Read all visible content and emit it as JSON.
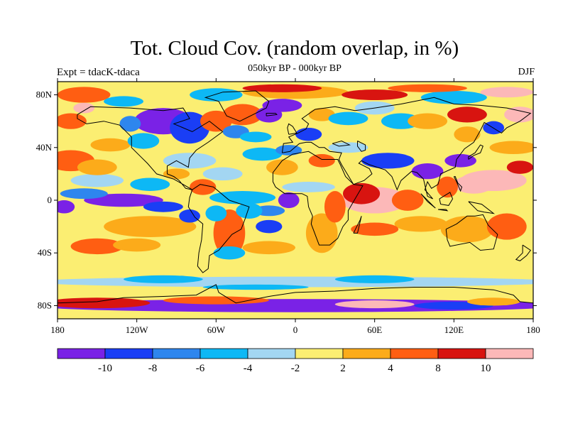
{
  "title": "Tot. Cloud Cov. (random overlap, in %)",
  "subtitle": "050kyr BP - 000kyr BP",
  "experiment": "Expt = tdacK-tdaca",
  "season": "DJF",
  "axes": {
    "x_ticks": [
      "180",
      "120W",
      "60W",
      "0",
      "60E",
      "120E",
      "180"
    ],
    "y_ticks": [
      "80N",
      "40N",
      "0",
      "40S",
      "80S"
    ]
  },
  "colorbar": {
    "labels": [
      "-10",
      "-8",
      "-6",
      "-4",
      "-2",
      "2",
      "4",
      "8",
      "10"
    ],
    "colors": [
      "#7a22e6",
      "#1a3ef5",
      "#2e86ee",
      "#0db8f5",
      "#a3d6f2",
      "#fbee72",
      "#fcab1a",
      "#ff5e12",
      "#d81410",
      "#fcb8b8"
    ]
  },
  "chart_data": {
    "type": "heatmap",
    "projection": "cylindrical equidistant, global",
    "x_range": [
      -180,
      180
    ],
    "y_range": [
      -90,
      90
    ],
    "levels": [
      -10,
      -8,
      -6,
      -4,
      -2,
      2,
      4,
      8,
      10
    ],
    "colors": [
      "#7a22e6",
      "#1a3ef5",
      "#2e86ee",
      "#0db8f5",
      "#a3d6f2",
      "#fbee72",
      "#fcab1a",
      "#ff5e12",
      "#d81410",
      "#fcb8b8"
    ],
    "features": [
      {
        "region": "tropical Indian Ocean / East Africa",
        "level": ">10"
      },
      {
        "region": "Western Pacific / Philippines",
        "level": ">10"
      },
      {
        "region": "Arctic margins",
        "level": ">10"
      },
      {
        "region": "Canada / North America",
        "level": "<-10"
      },
      {
        "region": "Greenland Sea / North Atlantic",
        "level": "<-10"
      },
      {
        "region": "Eastern Pacific equatorial",
        "level": "<-10"
      },
      {
        "region": "Southern Ocean ~60S",
        "level": "-2 to -4"
      },
      {
        "region": "Antarctic coast",
        "level": "<-10"
      }
    ]
  }
}
